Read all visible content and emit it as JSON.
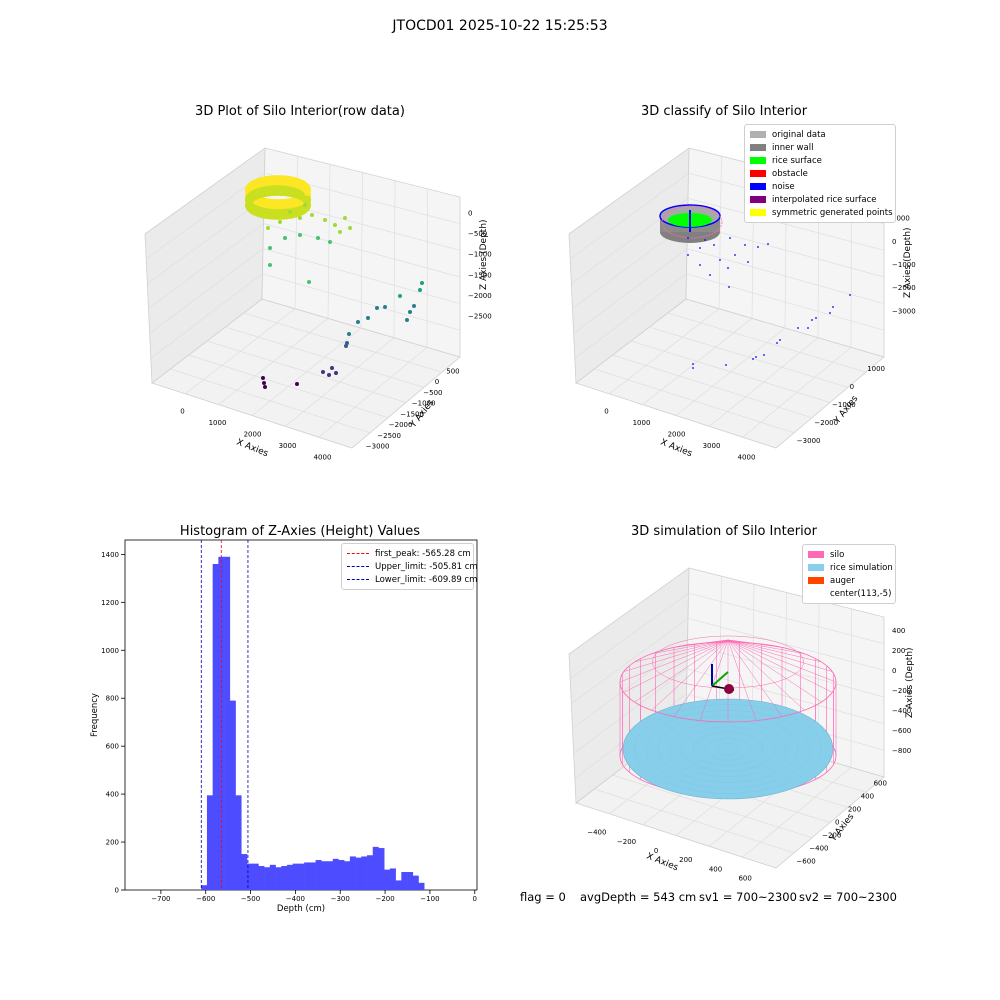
{
  "suptitle": "JTOCD01 2025-10-22 15:25:53",
  "footer": {
    "flag": "flag = 0",
    "avg_depth": "avgDepth = 543 cm",
    "sv1": "sv1 = 700~2300",
    "sv2": "sv2 = 700~2300"
  },
  "colors": {
    "hist_bar": "#4d4dff",
    "peak_line": "#ff0000",
    "limit_line": "#0000aa",
    "silo": "#ff69b4",
    "rice": "#87ceeb",
    "auger": "#ff4500"
  },
  "chart_data": [
    {
      "type": "scatter",
      "title": "3D Plot of Silo Interior(row data)",
      "xlabel": "X Axies",
      "ylabel": "Y Axies",
      "zlabel": "Z Axies (Depth)",
      "x_ticks": [
        "0",
        "1000",
        "2000",
        "3000",
        "4000"
      ],
      "y_ticks": [
        "500",
        "0",
        "−500",
        "−1000",
        "−1500",
        "−2000",
        "−2500",
        "−3000"
      ],
      "z_ticks": [
        "0",
        "−500",
        "−1000",
        "−1500",
        "−2000",
        "−2500"
      ],
      "colormap": "viridis"
    },
    {
      "type": "scatter",
      "title": "3D classify of Silo Interior",
      "xlabel": "X Axies",
      "ylabel": "Y Axies",
      "zlabel": "Z Axies (Depth)",
      "x_ticks": [
        "0",
        "1000",
        "2000",
        "3000",
        "4000"
      ],
      "y_ticks": [
        "1000",
        "0",
        "−1000",
        "−2000",
        "−3000"
      ],
      "z_ticks": [
        "1000",
        "0",
        "−1000",
        "−2000",
        "−3000"
      ],
      "legend": [
        {
          "label": "original data",
          "color": "#b0b0b0"
        },
        {
          "label": "inner wall",
          "color": "#808080"
        },
        {
          "label": "rice surface",
          "color": "#00ff00"
        },
        {
          "label": "obstacle",
          "color": "#ff0000"
        },
        {
          "label": "noise",
          "color": "#0000ff"
        },
        {
          "label": "interpolated rice surface",
          "color": "#800080"
        },
        {
          "label": "symmetric generated points",
          "color": "#ffff00"
        }
      ]
    },
    {
      "type": "bar",
      "title": "Histogram of Z-Axies (Height) Values",
      "xlabel": "Depth (cm)",
      "ylabel": "Frequency",
      "xlim": [
        -780,
        5
      ],
      "ylim": [
        0,
        1460
      ],
      "x_ticks": [
        -700,
        -600,
        -500,
        -400,
        -300,
        -200,
        -100,
        0
      ],
      "x_tick_labels": [
        "−700",
        "−600",
        "−500",
        "−400",
        "−300",
        "−200",
        "−100",
        "0"
      ],
      "y_ticks": [
        0,
        200,
        400,
        600,
        800,
        1000,
        1200,
        1400
      ],
      "bin_start": -610,
      "bin_width": 12.75,
      "values": [
        20,
        395,
        1360,
        1390,
        1390,
        790,
        395,
        150,
        110,
        110,
        100,
        95,
        105,
        95,
        100,
        105,
        110,
        110,
        115,
        115,
        125,
        120,
        120,
        130,
        125,
        120,
        140,
        135,
        140,
        145,
        180,
        175,
        85,
        90,
        40,
        75,
        75,
        60,
        30
      ],
      "vlines": [
        {
          "x": -565.28,
          "label": "first_peak: -565.28 cm",
          "color": "#ff0000"
        },
        {
          "x": -505.81,
          "label": "Upper_limit: -505.81 cm",
          "color": "#0000aa"
        },
        {
          "x": -609.89,
          "label": "Lower_limit: -609.89 cm",
          "color": "#0000aa"
        }
      ]
    },
    {
      "type": "scatter",
      "title": "3D simulation of Silo Interior",
      "xlabel": "X Axies",
      "ylabel": "Y Axies",
      "zlabel": "Z Axies (Depth)",
      "x_ticks": [
        "−400",
        "−200",
        "0",
        "200",
        "400",
        "600"
      ],
      "y_ticks": [
        "600",
        "400",
        "200",
        "0",
        "−200",
        "−400",
        "−600"
      ],
      "z_ticks": [
        "400",
        "200",
        "0",
        "−200",
        "−400",
        "−600",
        "−800"
      ],
      "legend": [
        {
          "label": "silo",
          "color": "#ff69b4"
        },
        {
          "label": "rice simulation",
          "color": "#87ceeb"
        },
        {
          "label": "auger",
          "color": "#ff4500"
        },
        {
          "label": "center(113,-5)",
          "color": "#ffffff"
        }
      ]
    }
  ]
}
